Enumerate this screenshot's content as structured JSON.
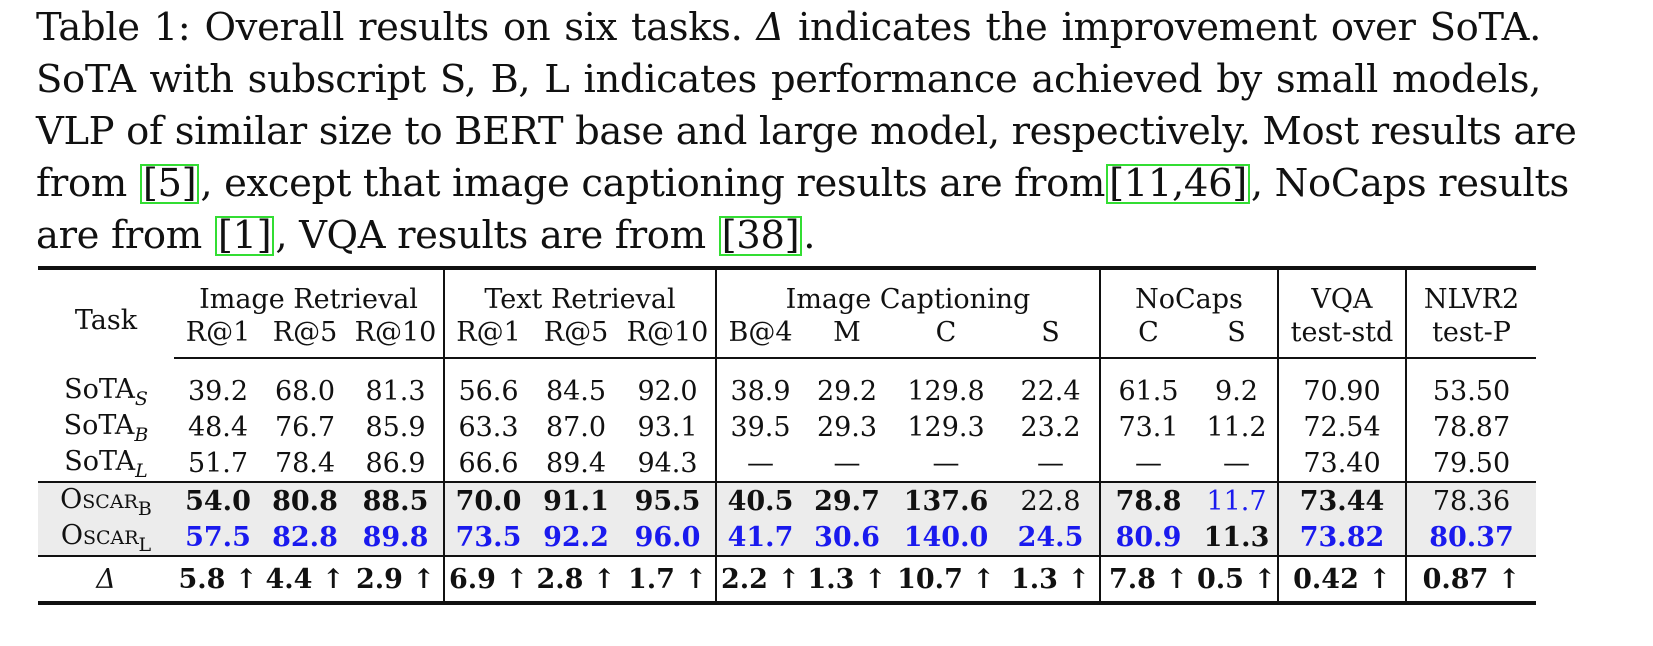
{
  "caption": {
    "line1": {
      "a": "Table 1: Overall results on six tasks. ",
      "delta": "Δ",
      "b": " indicates the improvement over SoTA."
    },
    "line2": "SoTA with subscript S, B, L indicates performance achieved by small models,",
    "line3": "VLP of similar size to BERT base and large model, respectively. Most results are",
    "line4": {
      "a": "from ",
      "c1": "[5]",
      "b": ", except that image captioning results are from",
      "c2": "[11,46]",
      "c": ", NoCaps results"
    },
    "line5": {
      "a": "are from ",
      "c1": "[1]",
      "b": ", VQA results are from ",
      "c2": "[38]",
      "c": "."
    }
  },
  "table": {
    "header": {
      "task": "Task",
      "groups": [
        "Image Retrieval",
        "Text Retrieval",
        "Image Captioning",
        "NoCaps",
        "VQA",
        "NLVR2"
      ],
      "subheaders": [
        "R@1",
        "R@5",
        "R@10",
        "R@1",
        "R@5",
        "R@10",
        "B@4",
        "M",
        "C",
        "S",
        "C",
        "S",
        "test-std",
        "test-P"
      ]
    },
    "rows": [
      {
        "label": "SoTA",
        "sub": "S",
        "values": [
          "39.2",
          "68.0",
          "81.3",
          "56.6",
          "84.5",
          "92.0",
          "38.9",
          "29.2",
          "129.8",
          "22.4",
          "61.5",
          "9.2",
          "70.90",
          "53.50"
        ]
      },
      {
        "label": "SoTA",
        "sub": "B",
        "values": [
          "48.4",
          "76.7",
          "85.9",
          "63.3",
          "87.0",
          "93.1",
          "39.5",
          "29.3",
          "129.3",
          "23.2",
          "73.1",
          "11.2",
          "72.54",
          "78.87"
        ]
      },
      {
        "label": "SoTA",
        "sub": "L",
        "values": [
          "51.7",
          "78.4",
          "86.9",
          "66.6",
          "89.4",
          "94.3",
          "—",
          "—",
          "—",
          "—",
          "—",
          "—",
          "73.40",
          "79.50"
        ]
      },
      {
        "label": "Oscar",
        "sub": "B",
        "values": [
          "54.0",
          "80.8",
          "88.5",
          "70.0",
          "91.1",
          "95.5",
          "40.5",
          "29.7",
          "137.6",
          "22.8",
          "78.8",
          "11.7",
          "73.44",
          "78.36"
        ]
      },
      {
        "label": "Oscar",
        "sub": "L",
        "values": [
          "57.5",
          "82.8",
          "89.8",
          "73.5",
          "92.2",
          "96.0",
          "41.7",
          "30.6",
          "140.0",
          "24.5",
          "80.9",
          "11.3",
          "73.82",
          "80.37"
        ]
      },
      {
        "label": "Δ",
        "values": [
          "5.8 ↑",
          "4.4 ↑",
          "2.9 ↑",
          "6.9 ↑",
          "2.8 ↑",
          "1.7 ↑",
          "2.2 ↑",
          "1.3 ↑",
          "10.7 ↑",
          "1.3 ↑",
          "7.8 ↑",
          "0.5 ↑",
          "0.42 ↑",
          "0.87 ↑"
        ]
      }
    ],
    "colors": {
      "highlight_blue": "#1a1aee",
      "row_shade": "#ececec"
    }
  }
}
